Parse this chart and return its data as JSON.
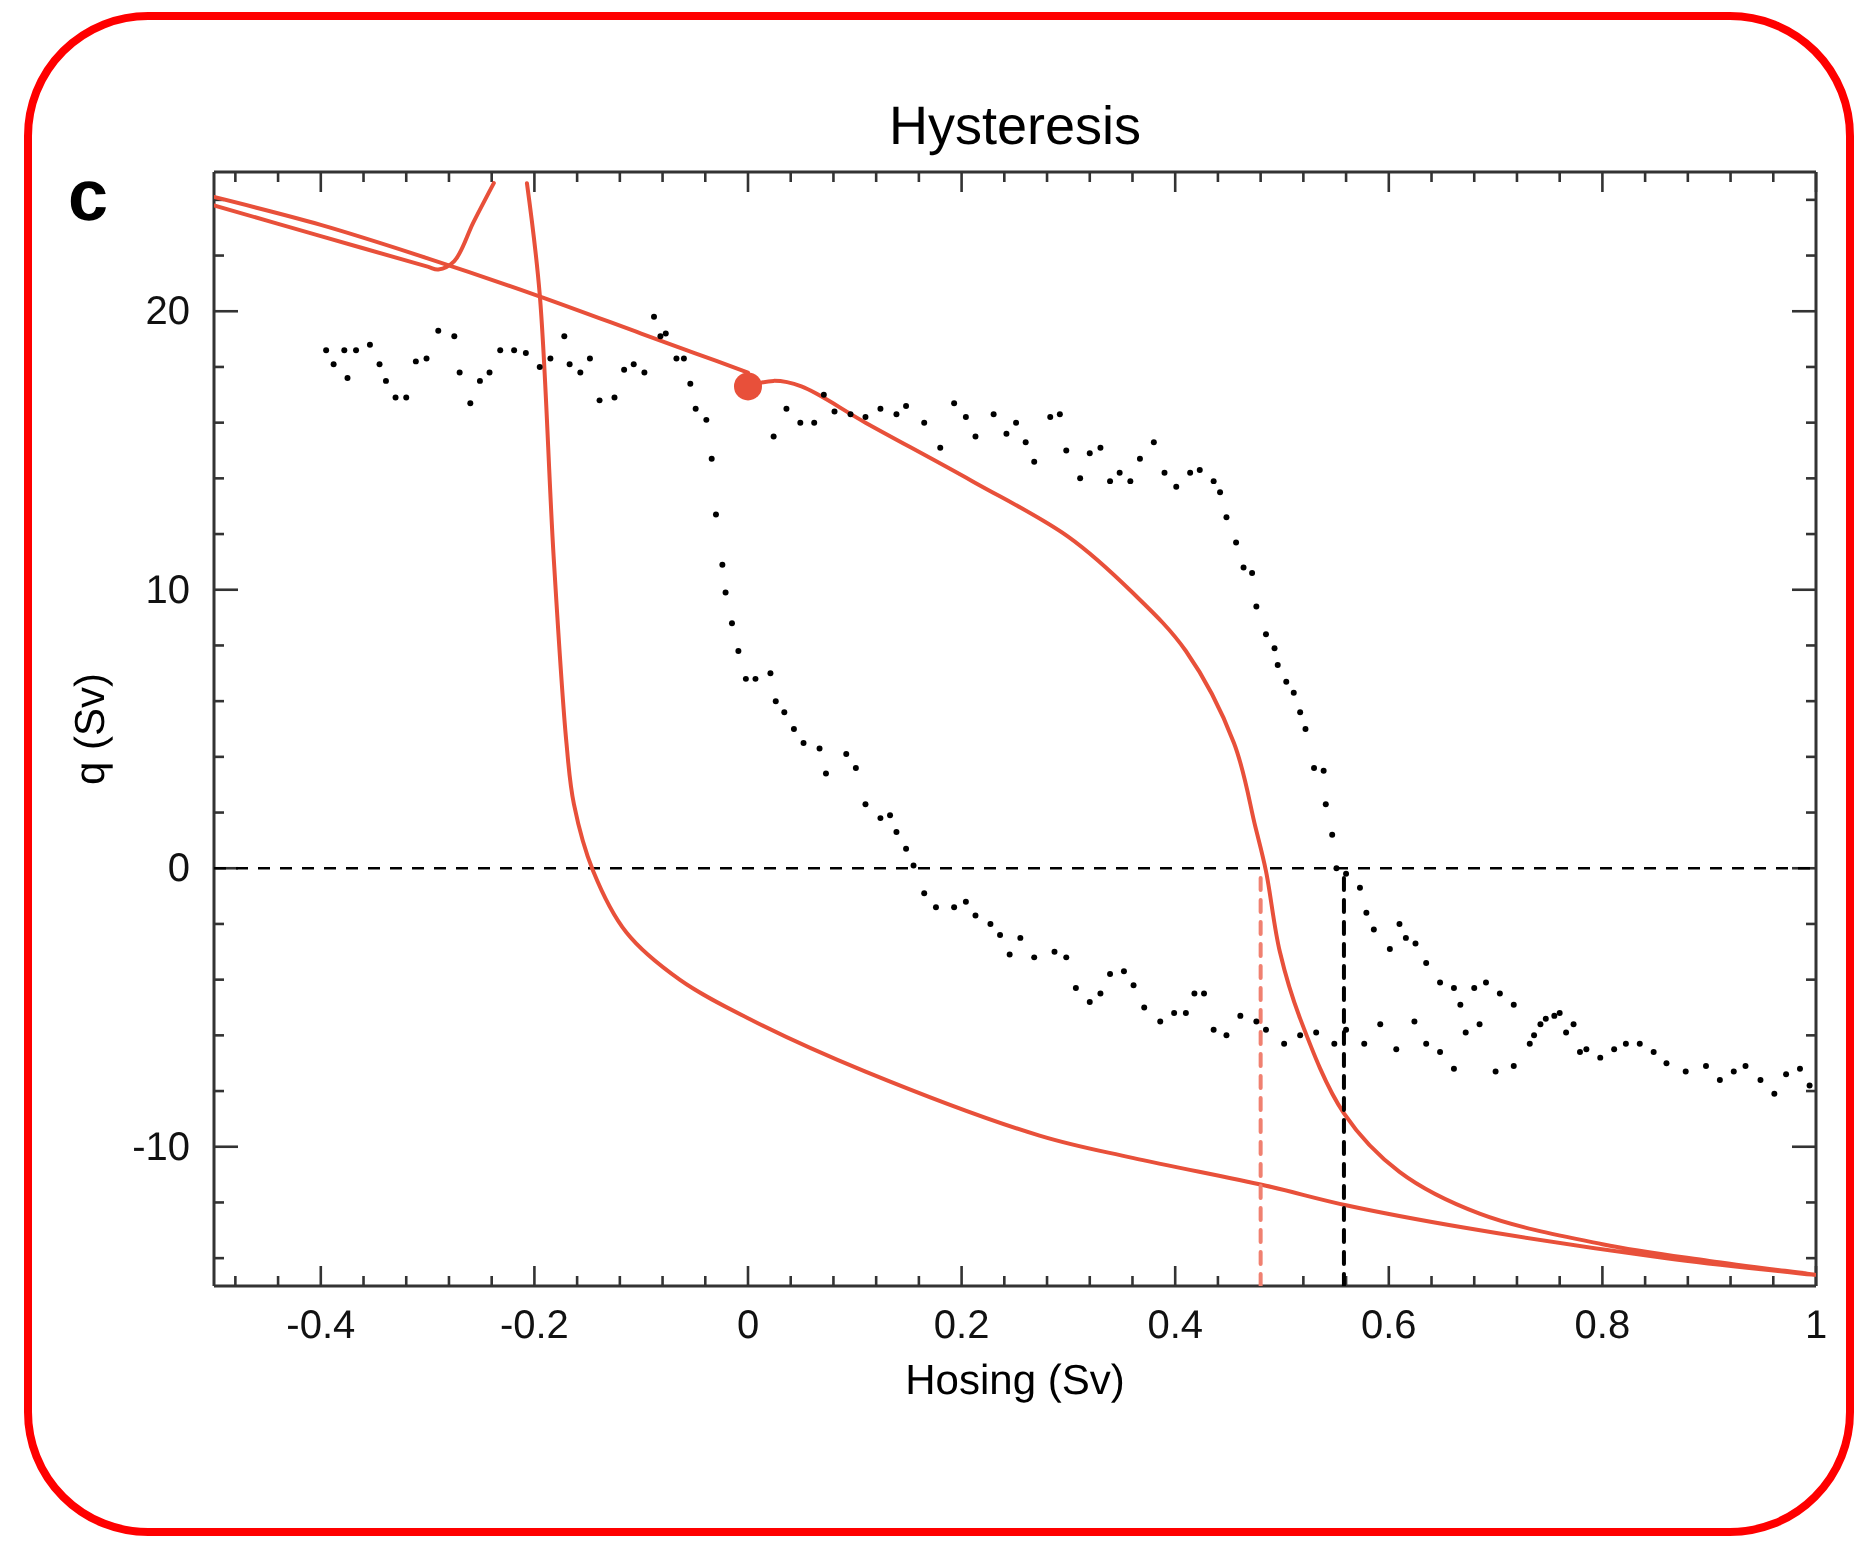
{
  "chart_data": {
    "type": "line",
    "title": "Hysteresis",
    "xlabel": "Hosing (Sv)",
    "ylabel": "q (Sv)",
    "annotations": [
      "c"
    ],
    "xlim": [
      -0.5,
      1
    ],
    "ylim": [
      -15,
      25
    ],
    "grid": false,
    "xticks": [
      {
        "value": -0.48,
        "label": null
      },
      {
        "value": -0.44,
        "label": null
      },
      -0.4,
      {
        "value": -0.36,
        "label": null
      },
      {
        "value": -0.32,
        "label": null
      },
      {
        "value": -0.28,
        "label": null
      },
      {
        "value": -0.24,
        "label": null
      },
      -0.2,
      {
        "value": -0.16,
        "label": null
      },
      {
        "value": -0.12,
        "label": null
      },
      {
        "value": -0.08,
        "label": null
      },
      {
        "value": -0.04,
        "label": null
      },
      0,
      {
        "value": 0.04,
        "label": null
      },
      {
        "value": 0.08,
        "label": null
      },
      {
        "value": 0.12,
        "label": null
      },
      {
        "value": 0.16,
        "label": null
      },
      0.2,
      {
        "value": 0.24,
        "label": null
      },
      {
        "value": 0.28,
        "label": null
      },
      {
        "value": 0.32,
        "label": null
      },
      {
        "value": 0.36,
        "label": null
      },
      0.4,
      {
        "value": 0.44,
        "label": null
      },
      {
        "value": 0.48,
        "label": null
      },
      {
        "value": 0.52,
        "label": null
      },
      {
        "value": 0.56,
        "label": null
      },
      0.6,
      {
        "value": 0.64,
        "label": null
      },
      {
        "value": 0.68,
        "label": null
      },
      {
        "value": 0.72,
        "label": null
      },
      {
        "value": 0.76,
        "label": null
      },
      0.8,
      {
        "value": 0.84,
        "label": null
      },
      {
        "value": 0.88,
        "label": null
      },
      {
        "value": 0.92,
        "label": null
      },
      {
        "value": 0.96,
        "label": null
      },
      1
    ],
    "yticks": [
      {
        "value": -14,
        "label": null
      },
      {
        "value": -12,
        "label": null
      },
      -10,
      {
        "value": -8,
        "label": null
      },
      {
        "value": -6,
        "label": null
      },
      {
        "value": -4,
        "label": null
      },
      {
        "value": -2,
        "label": null
      },
      0,
      {
        "value": 2,
        "label": null
      },
      {
        "value": 4,
        "label": null
      },
      {
        "value": 6,
        "label": null
      },
      {
        "value": 8,
        "label": null
      },
      10,
      {
        "value": 12,
        "label": null
      },
      {
        "value": 14,
        "label": null
      },
      {
        "value": 16,
        "label": null
      },
      {
        "value": 18,
        "label": null
      },
      20,
      {
        "value": 22,
        "label": null
      },
      {
        "value": 24,
        "label": null
      }
    ],
    "ref_lines": [
      {
        "axis": "y",
        "value": 0,
        "color": "#000000",
        "line_style": "dashed"
      }
    ],
    "series": [
      {
        "color": "#e8503a",
        "line_style": "solid",
        "x": [
          0,
          0.024,
          0.05,
          0.11,
          0.21,
          0.3,
          0.36,
          0.41,
          0.455,
          0.475,
          0.485,
          0.498,
          0.517,
          0.558,
          0.61,
          0.685,
          0.8,
          0.9,
          1,
          0.86,
          0.67,
          0.56,
          0.485,
          0.36,
          0.273,
          0.11,
          0.006,
          -0.064,
          -0.114,
          -0.145,
          -0.163,
          -0.17,
          -0.182,
          -0.195,
          -0.207,
          -0.22,
          -0.238,
          -0.257,
          -0.275,
          -0.29,
          -0.3,
          -0.4,
          -0.5
        ],
        "values": [
          17.3,
          17.5,
          17.3,
          16.0,
          13.9,
          11.9,
          9.9,
          7.8,
          4.5,
          1.5,
          -0.1,
          -3.0,
          -5.4,
          -8.8,
          -10.9,
          -12.4,
          -13.5,
          -14.1,
          -14.6,
          -14.0,
          -12.9,
          -12.1,
          -11.4,
          -10.4,
          -9.6,
          -7.3,
          -5.5,
          -4.0,
          -2.3,
          -0.1,
          2.3,
          4.5,
          11.2,
          20.6,
          24.6,
          null,
          24.6,
          23.2,
          21.8,
          21.5,
          21.6,
          22.7,
          23.8
        ]
      },
      {
        "color": "#e8503a",
        "line_style": "solid",
        "x": [
          -0.5,
          -0.4,
          -0.3,
          -0.2,
          -0.1,
          -0.05,
          0
        ],
        "values": [
          24.1,
          23.1,
          21.9,
          20.6,
          19.2,
          18.5,
          17.8
        ]
      },
      {
        "color": "#f08070",
        "line_style": "dashed",
        "x": [
          0.48,
          0.48
        ],
        "values": [
          -15,
          0
        ]
      },
      {
        "color": "#000000",
        "line_style": "dashed",
        "x": [
          0.558,
          0.558
        ],
        "values": [
          -15,
          0
        ]
      },
      {
        "type": "scatter",
        "color": "#000000",
        "marker": "circle",
        "x": [
          -0.395,
          -0.388,
          -0.378,
          -0.375,
          -0.367,
          -0.354,
          -0.345,
          -0.339,
          -0.33,
          -0.32,
          -0.311,
          -0.301,
          -0.29,
          -0.275,
          -0.27,
          -0.26,
          -0.251,
          -0.242,
          -0.232,
          -0.219,
          -0.208,
          -0.195,
          -0.185,
          -0.172,
          -0.167,
          -0.157,
          -0.148,
          -0.139,
          -0.125,
          -0.116,
          -0.107,
          -0.097,
          -0.088,
          -0.082,
          -0.077,
          -0.067,
          -0.06,
          -0.054,
          -0.049,
          -0.039,
          -0.034,
          -0.03,
          -0.024,
          -0.021,
          -0.015,
          -0.009,
          -0.002,
          0.007,
          0.021,
          0.026,
          0.034,
          0.043,
          0.052,
          0.067,
          0.073,
          0.092,
          0.101,
          0.11,
          0.124,
          0.133,
          0.139,
          0.148,
          0.155,
          0.165,
          0.176,
          0.193,
          0.204,
          0.213,
          0.227,
          0.236,
          0.245,
          0.255,
          0.268,
          0.287,
          0.298,
          0.307,
          0.32,
          0.33,
          0.339,
          0.352,
          0.361,
          0.371,
          0.386,
          0.399,
          0.41,
          0.418,
          0.427,
          0.436,
          0.448,
          0.461,
          0.476,
          0.485,
          0.502,
          0.517,
          0.532,
          0.549,
          0.56,
          0.577,
          0.592,
          0.607,
          0.624,
          0.635,
          0.648,
          0.661,
          0.672,
          0.685,
          0.7,
          0.717,
          0.732,
          0.742,
          0.755,
          0.766,
          0.779,
          0.024,
          0.036,
          0.049,
          0.062,
          0.071,
          0.081,
          0.096,
          0.11,
          0.124,
          0.139,
          0.148,
          0.165,
          0.18,
          0.193,
          0.204,
          0.213,
          0.23,
          0.242,
          0.251,
          0.26,
          0.268,
          0.283,
          0.292,
          0.298,
          0.311,
          0.32,
          0.33,
          0.339,
          0.348,
          0.358,
          0.367,
          0.38,
          0.39,
          0.401,
          0.414,
          0.423,
          0.436,
          0.442,
          0.448,
          0.457,
          0.464,
          0.472,
          0.476,
          0.485,
          0.493,
          0.496,
          0.504,
          0.511,
          0.517,
          0.522,
          0.53,
          0.539,
          0.541,
          0.547,
          0.551,
          0.56,
          0.573,
          0.579,
          0.586,
          0.601,
          0.61,
          0.616,
          0.625,
          0.635,
          0.648,
          0.661,
          0.667,
          0.68,
          0.691,
          0.704,
          0.717,
          0.736,
          0.747,
          0.76,
          0.773,
          0.785,
          0.798,
          0.811,
          0.822,
          0.835,
          0.848,
          0.86,
          0.878,
          0.897,
          0.91,
          0.923,
          0.934,
          0.948,
          0.961,
          0.972,
          0.985,
          0.994
        ],
        "values": [
          18.6,
          18.1,
          18.6,
          17.6,
          18.6,
          18.8,
          18.1,
          17.5,
          16.9,
          16.9,
          18.2,
          18.3,
          19.3,
          19.1,
          17.8,
          16.7,
          17.5,
          17.8,
          18.6,
          18.6,
          18.5,
          18.0,
          18.3,
          19.1,
          18.1,
          17.8,
          18.3,
          16.8,
          16.9,
          17.9,
          18.1,
          17.8,
          19.8,
          19.1,
          19.2,
          18.3,
          18.3,
          17.4,
          16.5,
          16.1,
          14.7,
          12.7,
          10.9,
          9.9,
          8.8,
          7.8,
          6.8,
          6.8,
          7.0,
          6.0,
          5.6,
          5.0,
          4.5,
          4.3,
          3.4,
          4.1,
          3.6,
          2.3,
          1.8,
          1.9,
          1.3,
          0.7,
          0.1,
          -0.9,
          -1.4,
          -1.4,
          -1.2,
          -1.7,
          -2.0,
          -2.4,
          -3.1,
          -2.5,
          -3.2,
          -3.0,
          -3.2,
          -4.3,
          -4.8,
          -4.5,
          -3.8,
          -3.7,
          -4.2,
          -5.0,
          -5.5,
          -5.2,
          -5.2,
          -4.5,
          -4.5,
          -5.8,
          -6.0,
          -5.3,
          -5.5,
          -5.8,
          -6.3,
          -6.0,
          -5.9,
          -6.3,
          -5.8,
          -6.3,
          -5.6,
          -6.5,
          -5.5,
          -6.3,
          -6.6,
          -7.2,
          -5.9,
          -5.6,
          -7.3,
          -7.1,
          -6.3,
          -5.6,
          -5.3,
          -5.9,
          -6.6,
          15.5,
          16.5,
          16.0,
          16.0,
          17.0,
          16.4,
          16.3,
          16.2,
          16.5,
          16.3,
          16.6,
          16.0,
          15.1,
          16.7,
          16.2,
          15.5,
          16.3,
          15.6,
          16.0,
          15.3,
          14.6,
          16.2,
          16.3,
          15.0,
          14.0,
          14.9,
          15.1,
          13.9,
          14.2,
          13.9,
          14.7,
          15.3,
          14.2,
          13.7,
          14.2,
          14.3,
          13.9,
          13.5,
          12.6,
          11.7,
          10.8,
          10.6,
          9.4,
          8.4,
          7.9,
          7.3,
          6.7,
          6.3,
          5.6,
          5.0,
          3.6,
          3.5,
          2.3,
          1.2,
          0.0,
          -0.2,
          -0.7,
          -1.6,
          -2.2,
          -2.9,
          -2.0,
          -2.5,
          -2.7,
          -3.4,
          -4.1,
          -4.3,
          -4.9,
          -4.3,
          -4.1,
          -4.5,
          -4.9,
          -6.0,
          -5.4,
          -5.2,
          -5.6,
          -6.5,
          -6.8,
          -6.5,
          -6.3,
          -6.3,
          -6.6,
          -7.0,
          -7.3,
          -7.1,
          -7.6,
          -7.3,
          -7.1,
          -7.6,
          -8.1,
          -7.4,
          -7.2,
          -7.8
        ]
      },
      {
        "type": "bubble",
        "color": "#e8503a",
        "x": [
          0
        ],
        "values": [
          17.3
        ],
        "sizes": [
          1
        ]
      }
    ]
  }
}
